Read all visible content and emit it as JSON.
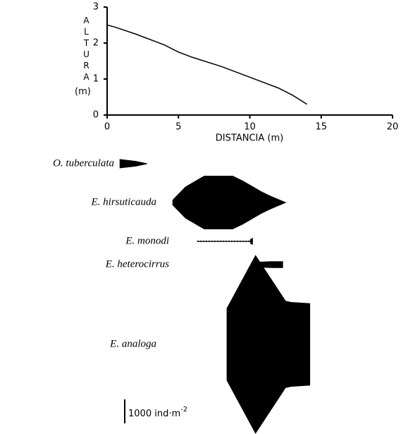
{
  "chart_data": [
    {
      "type": "line",
      "ylabel": "ALTURA",
      "ylabel_unit": "(m)",
      "xlabel": "DISTANCIA (m)",
      "xlim": [
        0,
        20
      ],
      "xticks": [
        0,
        5,
        10,
        15,
        20
      ],
      "ylim": [
        0,
        3
      ],
      "yticks": [
        0,
        1,
        2,
        3
      ],
      "series": [
        {
          "color": "#000000",
          "x": [
            0,
            0.5,
            2,
            4,
            5,
            6,
            8,
            10,
            12,
            13,
            14
          ],
          "values": [
            2.5,
            2.45,
            2.25,
            1.95,
            1.75,
            1.6,
            1.35,
            1.05,
            0.75,
            0.55,
            0.3
          ]
        }
      ]
    },
    {
      "type": "kite",
      "xlim": [
        0,
        20
      ],
      "scale_bar": {
        "value": 1000,
        "label": "1000 ind·m",
        "exponent": "-2"
      },
      "series": [
        {
          "name": "O. tuberculata",
          "color": "#000000",
          "x": [
            0.9,
            2.0,
            2.8
          ],
          "values": [
            350,
            200,
            0
          ]
        },
        {
          "name": "E. hirsuticauda",
          "color": "#000000",
          "x": [
            4.6,
            5.5,
            6.8,
            8.8,
            9.5,
            10.8,
            11.5,
            12.5
          ],
          "values": [
            200,
            1300,
            2200,
            2200,
            1800,
            900,
            500,
            0
          ]
        },
        {
          "name": "E. monodi",
          "color": "#000000",
          "x": [
            6.3,
            9.8,
            10.0,
            10.1,
            10.2
          ],
          "values": [
            30,
            30,
            30,
            250,
            250
          ]
        },
        {
          "name": "E. heterocirrus",
          "color": "#000000",
          "x": [
            10.4,
            11.5,
            12.3
          ],
          "values": [
            200,
            250,
            250
          ]
        },
        {
          "name": "E. analoga",
          "color": "#000000",
          "x": [
            8.4,
            10.4,
            12.5,
            12.9,
            14.2
          ],
          "values": [
            3000,
            7400,
            3600,
            3500,
            3400
          ]
        }
      ]
    }
  ]
}
